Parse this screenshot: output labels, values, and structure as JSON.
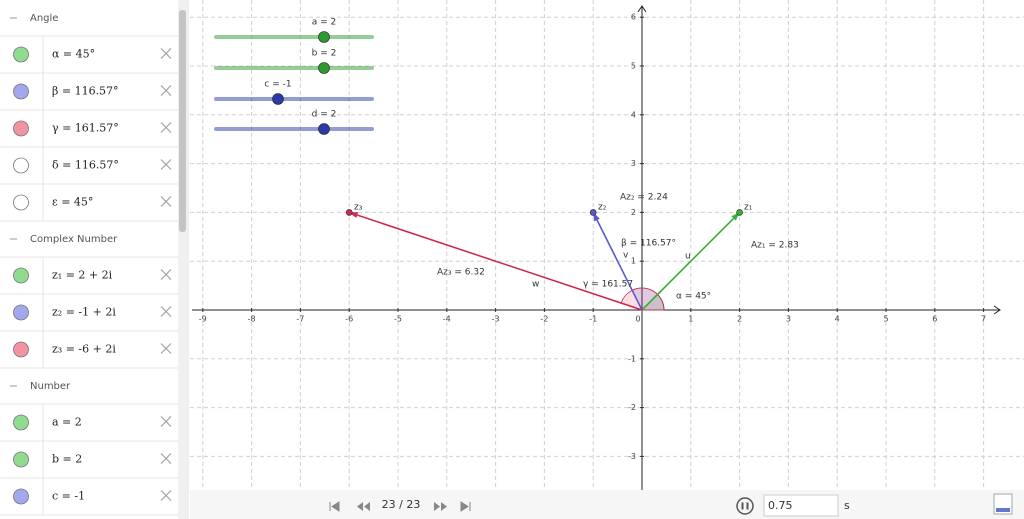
{
  "algebra": {
    "groups": [
      {
        "title": "Angle",
        "items": [
          {
            "text": "α = 45°",
            "color": "#8fdc8f"
          },
          {
            "text": "β = 116.57°",
            "color": "#a3a8ee"
          },
          {
            "text": "γ = 161.57°",
            "color": "#f293a3"
          },
          {
            "text": "δ = 116.57°",
            "color": "#ffffff"
          },
          {
            "text": "ε = 45°",
            "color": "#ffffff"
          }
        ]
      },
      {
        "title": "Complex Number",
        "items": [
          {
            "text": "z₁ = 2 + 2i",
            "color": "#8fdc8f"
          },
          {
            "text": "z₂ = -1 + 2i",
            "color": "#a3a8ee"
          },
          {
            "text": "z₃ = -6 + 2i",
            "color": "#f293a3"
          }
        ]
      },
      {
        "title": "Number",
        "items": [
          {
            "text": "a = 2",
            "color": "#8fdc8f"
          },
          {
            "text": "b = 2",
            "color": "#8fdc8f"
          },
          {
            "text": "c = -1",
            "color": "#a3a8ee"
          }
        ]
      }
    ]
  },
  "sliders": [
    {
      "label": "a = 2",
      "color": "#2e9a2e"
    },
    {
      "label": "b = 2",
      "color": "#2e9a2e"
    },
    {
      "label": "c = -1",
      "color": "#2a3aa8"
    },
    {
      "label": "d = 2",
      "color": "#2a3aa8"
    }
  ],
  "graphics": {
    "xticks": [
      -9,
      -8,
      -7,
      -6,
      -5,
      -4,
      -3,
      -2,
      -1,
      0,
      1,
      2,
      3,
      4,
      5,
      6,
      7
    ],
    "yticks": [
      -3,
      -2,
      -1,
      1,
      2,
      3,
      4,
      5,
      6
    ],
    "vectors": [
      {
        "name": "u",
        "x": 2,
        "y": 2,
        "color": "#33b233",
        "point": "z₁",
        "length_label": "Az₁ = 2.83",
        "angle_label": "α = 45°"
      },
      {
        "name": "v",
        "x": -1,
        "y": 2,
        "color": "#5a5ad0",
        "point": "z₂",
        "length_label": "Az₂ = 2.24",
        "angle_label": "β = 116.57°"
      },
      {
        "name": "w",
        "x": -6,
        "y": 2,
        "color": "#d02a55",
        "point": "z₃",
        "length_label": "Az₃ = 6.32",
        "angle_label": "γ = 161.57"
      }
    ]
  },
  "toolbar": {
    "frame": "23 / 23",
    "speed": "0.75",
    "unit": "s"
  }
}
